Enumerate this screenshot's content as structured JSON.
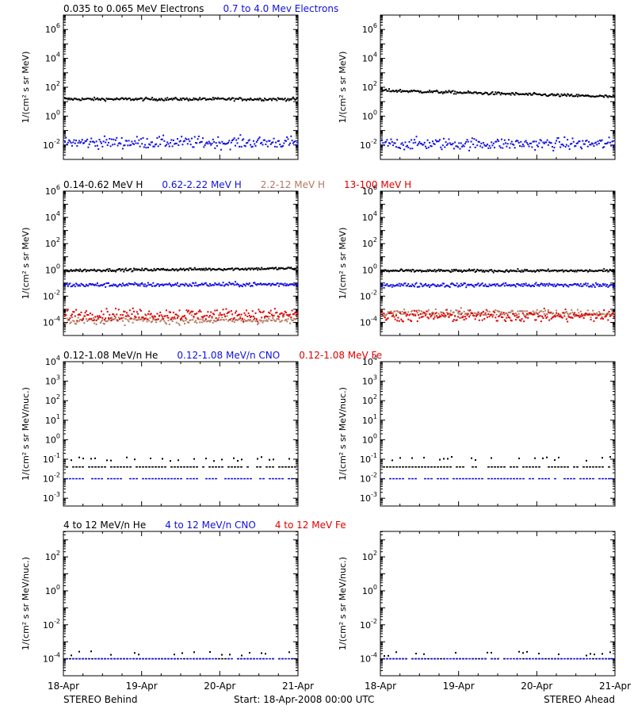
{
  "colors": {
    "black": "#000000",
    "blue": "#1010e0",
    "brown": "#b47860",
    "red": "#e00000"
  },
  "footer": {
    "left": "STEREO Behind",
    "center": "Start: 18-Apr-2008 00:00 UTC",
    "right": "STEREO Ahead"
  },
  "chart_data": [
    {
      "id": "electrons",
      "type": "scatter",
      "yscale": "log",
      "ylabel": "1/(cm² s sr MeV)",
      "ylim_exp": [
        -3,
        7
      ],
      "ytick_exps": [
        -2,
        0,
        2,
        4,
        6
      ],
      "ytick_labels": [
        "10^-2",
        "10^0",
        "10^2",
        "10^4",
        "10^6"
      ],
      "xlim": [
        "18-Apr",
        "21-Apr"
      ],
      "xtick_labels": [
        "18-Apr",
        "19-Apr",
        "20-Apr",
        "21-Apr"
      ],
      "legend": [
        {
          "label": "0.035 to 0.065 MeV Electrons",
          "color": "#000000"
        },
        {
          "label": "0.7 to 4.0 Mev Electrons",
          "color": "#1010e0"
        }
      ],
      "behind": [
        {
          "name": "0.035 to 0.065 MeV Electrons",
          "color": "#000000",
          "y_start": 15,
          "y_end": 15,
          "scatter_dex": 0.05
        },
        {
          "name": "0.7 to 4.0 Mev Electrons",
          "color": "#1010e0",
          "y_start": 0.015,
          "y_end": 0.015,
          "scatter_dex": 0.2
        }
      ],
      "ahead": [
        {
          "name": "0.035 to 0.065 MeV Electrons",
          "color": "#000000",
          "y_start": 60,
          "y_end": 22,
          "scatter_dex": 0.05
        },
        {
          "name": "0.7 to 4.0 Mev Electrons",
          "color": "#1010e0",
          "y_start": 0.012,
          "y_end": 0.012,
          "scatter_dex": 0.2
        }
      ]
    },
    {
      "id": "protons",
      "type": "scatter",
      "yscale": "log",
      "ylabel": "1/(cm² s sr MeV)",
      "ylim_exp": [
        -5,
        6
      ],
      "ytick_exps": [
        -4,
        -2,
        0,
        2,
        4,
        6
      ],
      "ytick_labels": [
        "10^-4",
        "10^-2",
        "10^0",
        "10^2",
        "10^4",
        "10^6"
      ],
      "xlim": [
        "18-Apr",
        "21-Apr"
      ],
      "xtick_labels": [
        "18-Apr",
        "19-Apr",
        "20-Apr",
        "21-Apr"
      ],
      "legend": [
        {
          "label": "0.14-0.62 MeV H",
          "color": "#000000"
        },
        {
          "label": "0.62-2.22 MeV H",
          "color": "#1010e0"
        },
        {
          "label": "2.2-12 MeV H",
          "color": "#b47860"
        },
        {
          "label": "13-100 MeV H",
          "color": "#e00000"
        }
      ],
      "behind": [
        {
          "name": "0.14-0.62 MeV H",
          "color": "#000000",
          "y_start": 0.9,
          "y_end": 1.3,
          "scatter_dex": 0.05
        },
        {
          "name": "0.62-2.22 MeV H",
          "color": "#1010e0",
          "y_start": 0.07,
          "y_end": 0.08,
          "scatter_dex": 0.08
        },
        {
          "name": "2.2-12 MeV H",
          "color": "#b47860",
          "y_start": 0.00015,
          "y_end": 0.00015,
          "scatter_dex": 0.15
        },
        {
          "name": "13-100 MeV H",
          "color": "#e00000",
          "y_start": 0.0004,
          "y_end": 0.0004,
          "scatter_dex": 0.22
        }
      ],
      "ahead": [
        {
          "name": "0.14-0.62 MeV H",
          "color": "#000000",
          "y_start": 0.85,
          "y_end": 0.85,
          "scatter_dex": 0.05
        },
        {
          "name": "0.62-2.22 MeV H",
          "color": "#1010e0",
          "y_start": 0.07,
          "y_end": 0.07,
          "scatter_dex": 0.08
        },
        {
          "name": "2.2-12 MeV H",
          "color": "#b47860",
          "y_start": 0.0005,
          "y_end": 0.0005,
          "scatter_dex": 0.15
        },
        {
          "name": "13-100 MeV H",
          "color": "#e00000",
          "y_start": 0.0003,
          "y_end": 0.0003,
          "scatter_dex": 0.22
        }
      ]
    },
    {
      "id": "ions-low",
      "type": "scatter",
      "yscale": "log",
      "ylabel": "1/(cm² s sr MeV/nuc.)",
      "ylim_exp": [
        -3.4,
        4
      ],
      "ytick_exps": [
        -3,
        -2,
        -1,
        0,
        1,
        2,
        3,
        4
      ],
      "ytick_labels": [
        "10^-3",
        "10^-2",
        "10^-1",
        "10^0",
        "10^1",
        "10^2",
        "10^3",
        "10^4"
      ],
      "xlim": [
        "18-Apr",
        "21-Apr"
      ],
      "xtick_labels": [
        "18-Apr",
        "19-Apr",
        "20-Apr",
        "21-Apr"
      ],
      "legend": [
        {
          "label": "0.12-1.08 MeV/n He",
          "color": "#000000"
        },
        {
          "label": "0.12-1.08 MeV/n CNO",
          "color": "#1010e0"
        },
        {
          "label": "0.12-1.08 MeV Fe",
          "color": "#e00000"
        }
      ],
      "behind": [
        {
          "name": "0.12-1.08 MeV/n He",
          "color": "#000000",
          "floor": 0.04,
          "spikes": 0.1
        },
        {
          "name": "0.12-1.08 MeV/n CNO",
          "color": "#1010e0",
          "floor": 0.01
        }
      ],
      "ahead": [
        {
          "name": "0.12-1.08 MeV/n He",
          "color": "#000000",
          "floor": 0.04,
          "spikes": 0.1
        },
        {
          "name": "0.12-1.08 MeV/n CNO",
          "color": "#1010e0",
          "floor": 0.01
        }
      ]
    },
    {
      "id": "ions-high",
      "type": "scatter",
      "yscale": "log",
      "ylabel": "1/(cm² s sr MeV/nuc.)",
      "ylim_exp": [
        -5,
        3.5
      ],
      "ytick_exps": [
        -4,
        -2,
        0,
        2
      ],
      "ytick_labels": [
        "10^-4",
        "10^-2",
        "10^0",
        "10^2"
      ],
      "xlim": [
        "18-Apr",
        "21-Apr"
      ],
      "xtick_labels": [
        "18-Apr",
        "19-Apr",
        "20-Apr",
        "21-Apr"
      ],
      "legend": [
        {
          "label": "4 to 12 MeV/n He",
          "color": "#000000"
        },
        {
          "label": "4 to 12 MeV/n CNO",
          "color": "#1010e0"
        },
        {
          "label": "4 to 12 MeV Fe",
          "color": "#e00000"
        }
      ],
      "behind": [
        {
          "name": "4 to 12 MeV/n He",
          "color": "#000000",
          "floor": 0.0001,
          "spikes": 0.0002
        },
        {
          "name": "4 to 12 MeV/n CNO",
          "color": "#1010e0",
          "floor": 0.0001
        }
      ],
      "ahead": [
        {
          "name": "4 to 12 MeV/n He",
          "color": "#000000",
          "floor": 0.0001,
          "spikes": 0.0002
        },
        {
          "name": "4 to 12 MeV/n CNO",
          "color": "#1010e0",
          "floor": 0.0001
        }
      ]
    }
  ]
}
